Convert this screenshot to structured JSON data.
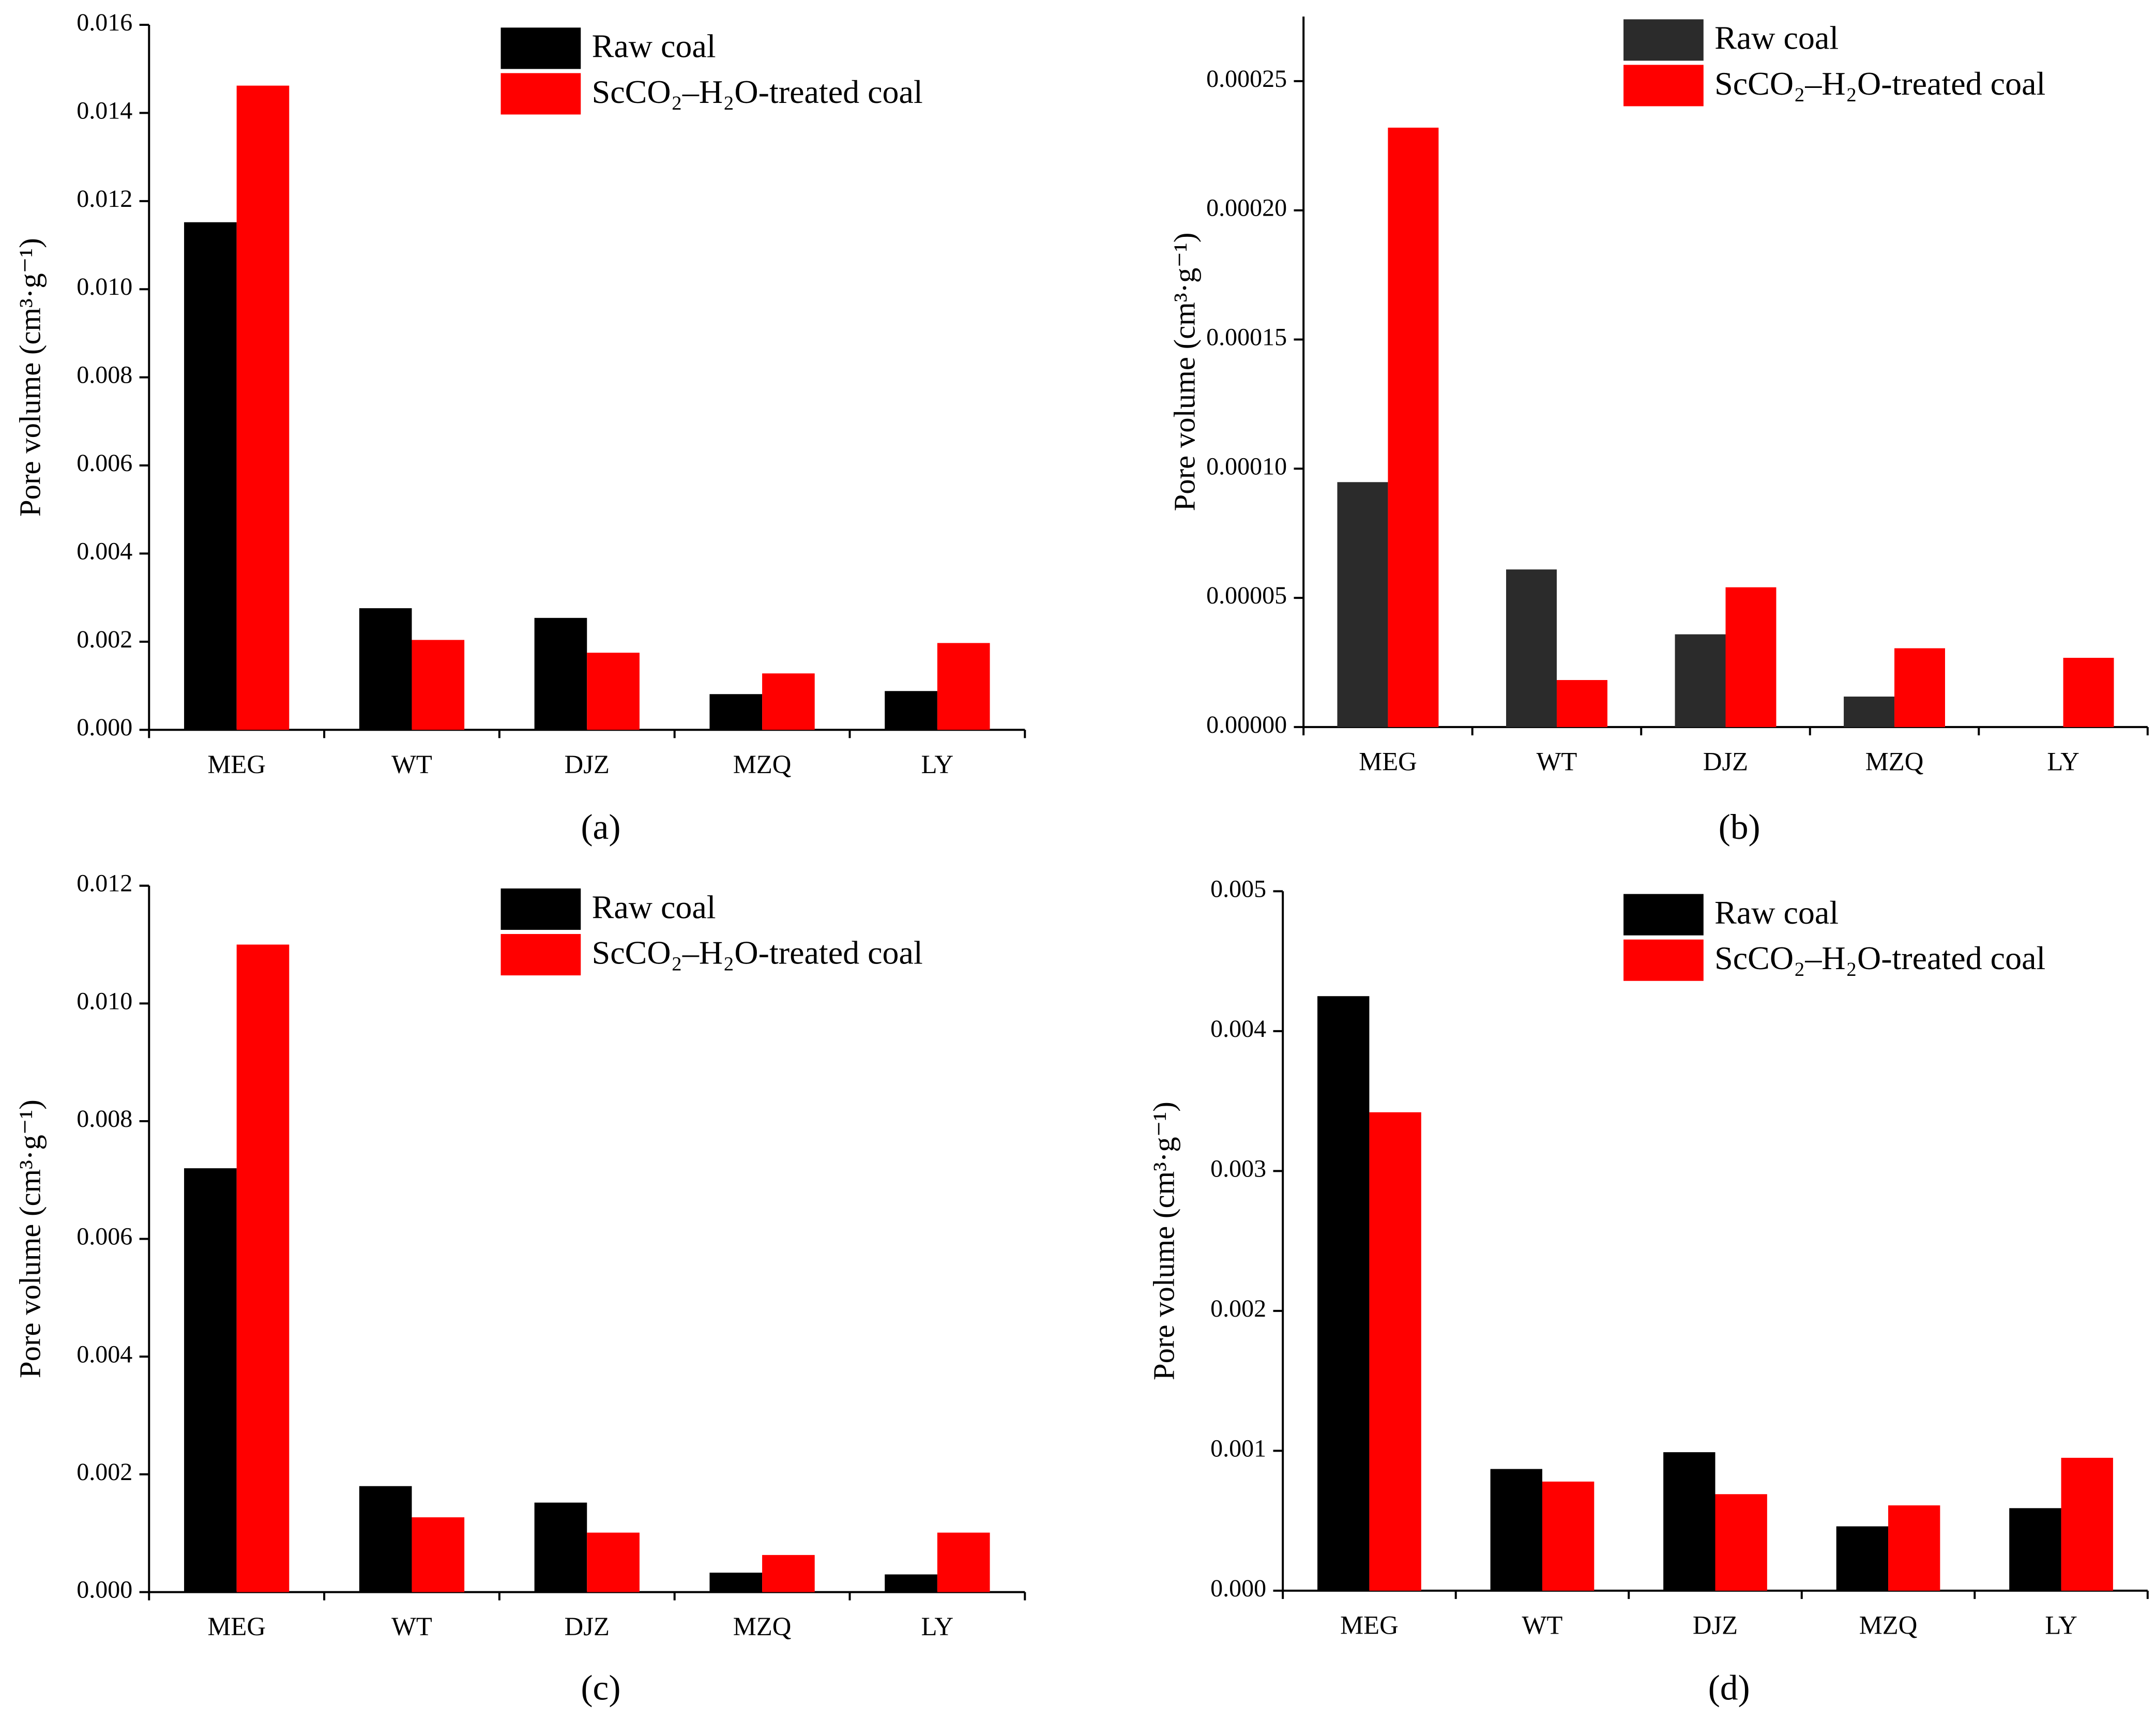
{
  "chart_data": [
    {
      "type": "bar",
      "subtitle": "(a)",
      "y_label": "Pore volume (cm³·g⁻¹)",
      "categories": [
        "MEG",
        "WT",
        "DJZ",
        "MZQ",
        "LY"
      ],
      "series": [
        {
          "name": "Raw coal",
          "color": "#000000",
          "values": [
            0.01152,
            0.00276,
            0.00254,
            0.00081,
            0.00088
          ]
        },
        {
          "name": "ScCO₂–H₂O-treated coal",
          "color": "#ff0000",
          "values": [
            0.01462,
            0.00204,
            0.00175,
            0.00128,
            0.00197
          ]
        }
      ],
      "ylim": [
        0,
        0.016
      ],
      "yticks": [
        {
          "value": 0,
          "label": "0.000"
        },
        {
          "value": 0.002,
          "label": "0.002"
        },
        {
          "value": 0.004,
          "label": "0.004"
        },
        {
          "value": 0.006,
          "label": "0.006"
        },
        {
          "value": 0.008,
          "label": "0.008"
        },
        {
          "value": 0.01,
          "label": "0.010"
        },
        {
          "value": 0.012,
          "label": "0.012"
        },
        {
          "value": 0.014,
          "label": "0.014"
        },
        {
          "value": 0.016,
          "label": "0.016"
        }
      ],
      "legend": "upper right"
    },
    {
      "type": "bar",
      "subtitle": "(b)",
      "y_label": "Pore volume (cm³·g⁻¹)",
      "categories": [
        "MEG",
        "WT",
        "DJZ",
        "MZQ",
        "LY"
      ],
      "series": [
        {
          "name": "Raw coal",
          "color": "#2b2b2b",
          "values": [
            9.48e-05,
            6.1e-05,
            3.59e-05,
            1.18e-05,
            0
          ]
        },
        {
          "name": "ScCO₂–H₂O-treated coal",
          "color": "#ff0000",
          "values": [
            0.000232,
            1.82e-05,
            5.41e-05,
            3.05e-05,
            2.68e-05
          ]
        }
      ],
      "ylim": [
        0,
        0.000275
      ],
      "yticks": [
        {
          "value": 0,
          "label": "0.00000"
        },
        {
          "value": 5e-05,
          "label": "0.00005"
        },
        {
          "value": 0.0001,
          "label": "0.00010"
        },
        {
          "value": 0.00015,
          "label": "0.00015"
        },
        {
          "value": 0.0002,
          "label": "0.00020"
        },
        {
          "value": 0.00025,
          "label": "0.00025"
        }
      ],
      "legend": "upper right"
    },
    {
      "type": "bar",
      "subtitle": "(c)",
      "y_label": "Pore volume (cm³·g⁻¹)",
      "categories": [
        "MEG",
        "WT",
        "DJZ",
        "MZQ",
        "LY"
      ],
      "series": [
        {
          "name": "Raw coal",
          "color": "#000000",
          "values": [
            0.0072,
            0.0018,
            0.00152,
            0.00033,
            0.0003
          ]
        },
        {
          "name": "ScCO₂–H₂O-treated coal",
          "color": "#ff0000",
          "values": [
            0.011,
            0.00127,
            0.00101,
            0.00063,
            0.00101
          ]
        }
      ],
      "ylim": [
        0,
        0.012
      ],
      "yticks": [
        {
          "value": 0,
          "label": "0.000"
        },
        {
          "value": 0.002,
          "label": "0.002"
        },
        {
          "value": 0.004,
          "label": "0.004"
        },
        {
          "value": 0.006,
          "label": "0.006"
        },
        {
          "value": 0.008,
          "label": "0.008"
        },
        {
          "value": 0.01,
          "label": "0.010"
        },
        {
          "value": 0.012,
          "label": "0.012"
        }
      ],
      "legend": "upper right"
    },
    {
      "type": "bar",
      "subtitle": "(d)",
      "y_label": "Pore volume (cm³·g⁻¹)",
      "categories": [
        "MEG",
        "WT",
        "DJZ",
        "MZQ",
        "LY"
      ],
      "series": [
        {
          "name": "Raw coal",
          "color": "#000000",
          "values": [
            0.00425,
            0.00087,
            0.00099,
            0.00046,
            0.00059
          ]
        },
        {
          "name": "ScCO₂–H₂O-treated coal",
          "color": "#ff0000",
          "values": [
            0.00342,
            0.00078,
            0.00069,
            0.00061,
            0.00095
          ]
        }
      ],
      "ylim": [
        0,
        0.005
      ],
      "yticks": [
        {
          "value": 0,
          "label": "0.000"
        },
        {
          "value": 0.001,
          "label": "0.001"
        },
        {
          "value": 0.002,
          "label": "0.002"
        },
        {
          "value": 0.003,
          "label": "0.003"
        },
        {
          "value": 0.004,
          "label": "0.004"
        },
        {
          "value": 0.005,
          "label": "0.005"
        }
      ],
      "legend": "upper right"
    }
  ]
}
